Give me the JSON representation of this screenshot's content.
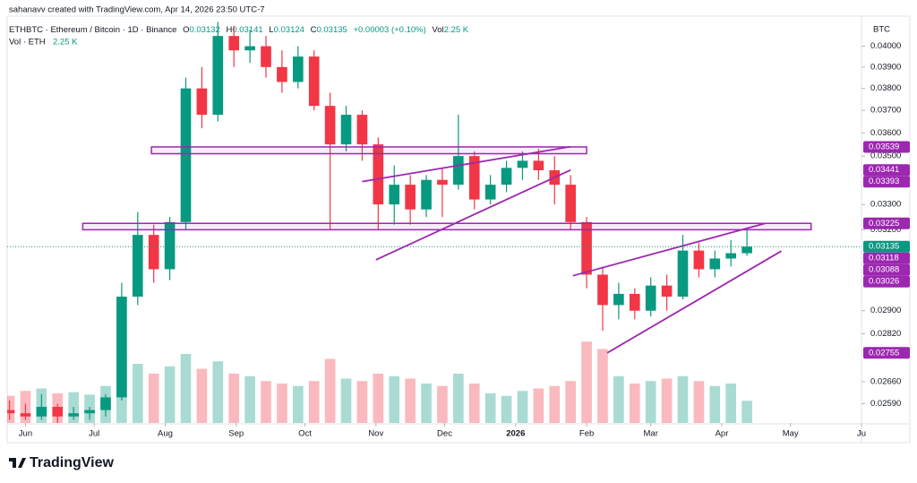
{
  "header": {
    "credit": "sahanavv created with TradingView.com, Apr 14, 2026 23:50 UTC-7",
    "brand": "TradingView"
  },
  "chart_data": {
    "type": "candlestick",
    "legend": {
      "symbol": "ETHBTC · Ethereum / Bitcoin · 1D · Binance",
      "o_label": "O",
      "open": "0.03132",
      "h_label": "H",
      "high": "0.03141",
      "l_label": "L",
      "low": "0.03124",
      "c_label": "C",
      "close": "0.03135",
      "change": "+0.00003 (+0.10%)",
      "vol_label": "Vol",
      "vol": "2.25 K",
      "vol_title": "Vol · ETH",
      "vol_value": "2.25 K"
    },
    "axis_unit": "BTC",
    "log_scale": true,
    "grid": false,
    "up_color": "#089981",
    "down_color": "#f23645",
    "drawing_color": "#9c27b0",
    "xlim": [
      -8,
      365
    ],
    "ylim": [
      0.0253,
      0.0414
    ],
    "vlim": [
      0,
      400
    ],
    "xticks": [
      {
        "value": 0,
        "label": "Jun"
      },
      {
        "value": 30,
        "label": "Jul"
      },
      {
        "value": 61,
        "label": "Aug"
      },
      {
        "value": 92,
        "label": "Sep"
      },
      {
        "value": 122,
        "label": "Oct"
      },
      {
        "value": 153,
        "label": "Nov"
      },
      {
        "value": 183,
        "label": "Dec"
      },
      {
        "value": 214,
        "label": "2026"
      },
      {
        "value": 245,
        "label": "Feb"
      },
      {
        "value": 273,
        "label": "Mar"
      },
      {
        "value": 304,
        "label": "Apr"
      },
      {
        "value": 334,
        "label": "May"
      },
      {
        "value": 365,
        "label": "Ju"
      }
    ],
    "yticks": [
      {
        "value": 0.04,
        "label": "0.04000"
      },
      {
        "value": 0.039,
        "label": "0.03900"
      },
      {
        "value": 0.038,
        "label": "0.03800"
      },
      {
        "value": 0.037,
        "label": "0.03700"
      },
      {
        "value": 0.036,
        "label": "0.03600"
      },
      {
        "value": 0.035,
        "label": "0.03500"
      },
      {
        "value": 0.033,
        "label": "0.03300"
      },
      {
        "value": 0.032,
        "label": "0.03200"
      },
      {
        "value": 0.029,
        "label": "0.02900"
      },
      {
        "value": 0.0282,
        "label": "0.02820"
      },
      {
        "value": 0.0266,
        "label": "0.02660"
      },
      {
        "value": 0.0259,
        "label": "0.02590"
      }
    ],
    "x": [
      -7,
      0,
      7,
      14,
      21,
      28,
      35,
      42,
      49,
      56,
      63,
      70,
      77,
      84,
      91,
      98,
      105,
      112,
      119,
      126,
      133,
      140,
      147,
      154,
      161,
      168,
      175,
      182,
      189,
      196,
      203,
      210,
      217,
      224,
      231,
      238,
      245,
      252,
      259,
      266,
      273,
      280,
      287,
      294,
      301,
      308,
      315
    ],
    "open": [
      0.0257,
      0.0256,
      0.0255,
      0.0258,
      0.0255,
      0.0256,
      0.0257,
      0.0261,
      0.0295,
      0.0318,
      0.0305,
      0.0323,
      0.038,
      0.0368,
      0.0405,
      0.0398,
      0.04,
      0.039,
      0.0383,
      0.0395,
      0.0372,
      0.0355,
      0.0368,
      0.0355,
      0.033,
      0.0338,
      0.0328,
      0.034,
      0.0338,
      0.035,
      0.0332,
      0.0338,
      0.0345,
      0.0348,
      0.0344,
      0.0338,
      0.0323,
      0.0303,
      0.0292,
      0.0296,
      0.029,
      0.0299,
      0.0295,
      0.0312,
      0.0305,
      0.0309,
      0.0311
    ],
    "high": [
      0.026,
      0.0259,
      0.0262,
      0.0259,
      0.0258,
      0.0258,
      0.0262,
      0.03,
      0.0327,
      0.0322,
      0.0325,
      0.0385,
      0.039,
      0.0412,
      0.041,
      0.0408,
      0.0405,
      0.0398,
      0.04,
      0.0398,
      0.0378,
      0.0372,
      0.037,
      0.0358,
      0.0346,
      0.0342,
      0.0342,
      0.0345,
      0.0368,
      0.0352,
      0.0342,
      0.0348,
      0.0352,
      0.0353,
      0.035,
      0.0342,
      0.0325,
      0.0306,
      0.03,
      0.0298,
      0.0302,
      0.0303,
      0.0318,
      0.0315,
      0.0312,
      0.0316,
      0.032
    ],
    "low": [
      0.0254,
      0.0254,
      0.0254,
      0.0253,
      0.0254,
      0.0254,
      0.0255,
      0.026,
      0.0292,
      0.03,
      0.0301,
      0.032,
      0.0362,
      0.0365,
      0.039,
      0.0392,
      0.0385,
      0.0378,
      0.038,
      0.037,
      0.032,
      0.0352,
      0.0348,
      0.032,
      0.0322,
      0.0322,
      0.0325,
      0.0325,
      0.0336,
      0.0328,
      0.033,
      0.0335,
      0.034,
      0.034,
      0.033,
      0.032,
      0.0298,
      0.0283,
      0.0287,
      0.0287,
      0.0288,
      0.029,
      0.0294,
      0.0302,
      0.0302,
      0.0306,
      0.031
    ],
    "close": [
      0.0256,
      0.0255,
      0.0258,
      0.0255,
      0.0256,
      0.0257,
      0.0261,
      0.0295,
      0.0318,
      0.0305,
      0.0323,
      0.038,
      0.0368,
      0.0405,
      0.0398,
      0.04,
      0.039,
      0.0383,
      0.0395,
      0.0372,
      0.0355,
      0.0368,
      0.0355,
      0.033,
      0.0338,
      0.0328,
      0.034,
      0.0338,
      0.035,
      0.0332,
      0.0338,
      0.0345,
      0.0348,
      0.0344,
      0.0338,
      0.0323,
      0.0303,
      0.0292,
      0.0296,
      0.029,
      0.0299,
      0.0295,
      0.0312,
      0.0305,
      0.0309,
      0.0311,
      0.03135
    ],
    "volume": [
      110,
      130,
      140,
      120,
      125,
      115,
      150,
      260,
      240,
      200,
      230,
      280,
      220,
      250,
      200,
      190,
      170,
      160,
      150,
      170,
      260,
      180,
      170,
      200,
      190,
      180,
      160,
      150,
      200,
      160,
      120,
      110,
      130,
      140,
      150,
      170,
      330,
      300,
      190,
      160,
      170,
      180,
      190,
      170,
      150,
      160,
      90
    ],
    "zones": [
      {
        "x": [
          55,
          245
        ],
        "prices": [
          0.03539,
          0.0351
        ]
      },
      {
        "x": [
          25,
          343
        ],
        "prices": [
          0.03225,
          0.032
        ]
      }
    ],
    "lines": [
      {
        "x": [
          147,
          238
        ],
        "prices": [
          0.03393,
          0.0354
        ]
      },
      {
        "x": [
          153,
          238
        ],
        "prices": [
          0.03085,
          0.03441
        ]
      },
      {
        "x": [
          239,
          323
        ],
        "prices": [
          0.03026,
          0.03225
        ]
      },
      {
        "x": [
          254,
          330
        ],
        "prices": [
          0.02755,
          0.03118
        ]
      }
    ],
    "last_price": 0.03135,
    "last_color": "#089981",
    "price_labels": [
      0.03539,
      0.03441,
      0.03393,
      0.03225,
      0.03135,
      0.03118,
      0.03088,
      0.03026,
      0.02755
    ]
  }
}
